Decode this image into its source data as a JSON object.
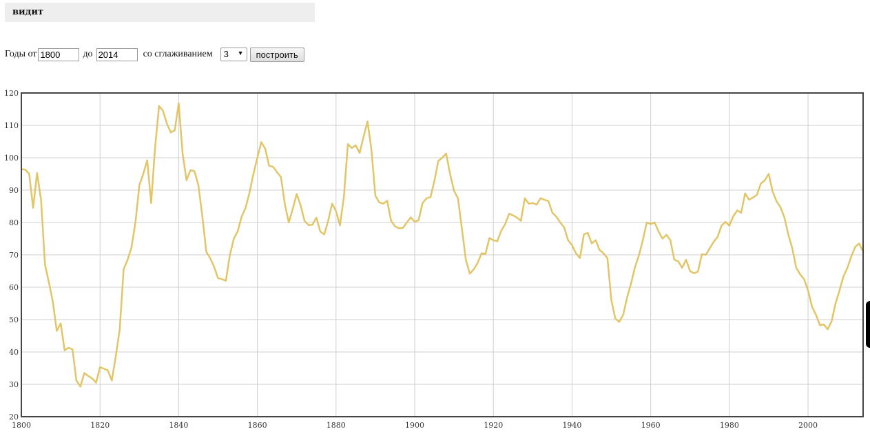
{
  "header": {
    "title": "видит"
  },
  "controls": {
    "years_from_label": "Годы от",
    "year_from": "1800",
    "to_label": "до",
    "year_to": "2014",
    "smoothing_label": "со сглаживанием",
    "smoothing_value": "3",
    "dropdown_arrow": "▼",
    "build_button": "построить"
  },
  "chart_data": {
    "type": "line",
    "title": "",
    "xlabel": "",
    "ylabel": "",
    "xlim": [
      1800,
      2014
    ],
    "ylim": [
      20,
      120
    ],
    "xticks": [
      1800,
      1820,
      1840,
      1860,
      1880,
      1900,
      1920,
      1940,
      1960,
      1980,
      2000
    ],
    "yticks": [
      20,
      30,
      40,
      50,
      60,
      70,
      80,
      90,
      100,
      110,
      120
    ],
    "grid": true,
    "line_color": "#e2c566",
    "series": [
      {
        "x": [
          1800,
          1801,
          1802,
          1803,
          1804,
          1805,
          1806,
          1807,
          1808,
          1809,
          1810,
          1811,
          1812,
          1813,
          1814,
          1815,
          1816,
          1817,
          1818,
          1819,
          1820,
          1821,
          1822,
          1823,
          1824,
          1825,
          1826,
          1827,
          1828,
          1829,
          1830,
          1831,
          1832,
          1833,
          1834,
          1835,
          1836,
          1837,
          1838,
          1839,
          1840,
          1841,
          1842,
          1843,
          1844,
          1845,
          1846,
          1847,
          1848,
          1849,
          1850,
          1851,
          1852,
          1853,
          1854,
          1855,
          1856,
          1857,
          1858,
          1859,
          1860,
          1861,
          1862,
          1863,
          1864,
          1865,
          1866,
          1867,
          1868,
          1869,
          1870,
          1871,
          1872,
          1873,
          1874,
          1875,
          1876,
          1877,
          1878,
          1879,
          1880,
          1881,
          1882,
          1883,
          1884,
          1885,
          1886,
          1887,
          1888,
          1889,
          1890,
          1891,
          1892,
          1893,
          1894,
          1895,
          1896,
          1897,
          1898,
          1899,
          1900,
          1901,
          1902,
          1903,
          1904,
          1905,
          1906,
          1907,
          1908,
          1909,
          1910,
          1911,
          1912,
          1913,
          1914,
          1915,
          1916,
          1917,
          1918,
          1919,
          1920,
          1921,
          1922,
          1923,
          1924,
          1925,
          1926,
          1927,
          1928,
          1929,
          1930,
          1931,
          1932,
          1933,
          1934,
          1935,
          1936,
          1937,
          1938,
          1939,
          1940,
          1941,
          1942,
          1943,
          1944,
          1945,
          1946,
          1947,
          1948,
          1949,
          1950,
          1951,
          1952,
          1953,
          1954,
          1955,
          1956,
          1957,
          1958,
          1959,
          1960,
          1961,
          1962,
          1963,
          1964,
          1965,
          1966,
          1967,
          1968,
          1969,
          1970,
          1971,
          1972,
          1973,
          1974,
          1975,
          1976,
          1977,
          1978,
          1979,
          1980,
          1981,
          1982,
          1983,
          1984,
          1985,
          1986,
          1987,
          1988,
          1989,
          1990,
          1991,
          1992,
          1993,
          1994,
          1995,
          1996,
          1997,
          1998,
          1999,
          2000,
          2001,
          2002,
          2003,
          2004,
          2005,
          2006,
          2007,
          2008,
          2009,
          2010,
          2011,
          2012,
          2013,
          2014
        ],
        "y": [
          96.5,
          96.3,
          95,
          84.5,
          95.3,
          87,
          67,
          61.5,
          55.5,
          46.5,
          48.8,
          40.5,
          41.3,
          40.8,
          31.2,
          29.3,
          33.5,
          32.6,
          31.8,
          30.5,
          35.3,
          34.8,
          34.3,
          31.2,
          38.5,
          47,
          65.5,
          68.5,
          72.3,
          80,
          91.5,
          95,
          99.2,
          86,
          103,
          116,
          114.5,
          110.5,
          107.8,
          108.5,
          116.8,
          101.3,
          93,
          96.2,
          95.8,
          91.5,
          82,
          71,
          69,
          66.3,
          62.8,
          62.5,
          62,
          69.8,
          75,
          77.3,
          81.8,
          84.5,
          89.2,
          95,
          100,
          104.8,
          102.8,
          97.5,
          97.2,
          95.5,
          94,
          85.5,
          80,
          84.2,
          88.8,
          85.3,
          80.5,
          79.2,
          79.3,
          81.5,
          77.2,
          76.3,
          80.5,
          85.8,
          83.5,
          79.1,
          87.8,
          104.2,
          103,
          103.8,
          101.5,
          106.5,
          111.2,
          102.5,
          88.3,
          86.2,
          85.8,
          86.7,
          80.5,
          78.8,
          78.2,
          78.3,
          80,
          81.6,
          80.2,
          80.7,
          86,
          87.5,
          87.8,
          92.8,
          99,
          100,
          101.3,
          95,
          89.8,
          87.5,
          78,
          68.5,
          64.2,
          65.5,
          67.5,
          70.5,
          70.3,
          75.2,
          74.5,
          74.2,
          77.5,
          79.5,
          82.7,
          82.2,
          81.5,
          80.5,
          87.5,
          85.8,
          86,
          85.5,
          87.5,
          87,
          86.6,
          83,
          81.8,
          80,
          78.5,
          74.5,
          73,
          70.5,
          69,
          76.3,
          76.8,
          73.5,
          74.5,
          71.5,
          70.5,
          69,
          56,
          50.3,
          49.3,
          51.5,
          56.8,
          61.2,
          66.2,
          69.8,
          74.5,
          80,
          79.5,
          80,
          77.2,
          75,
          76.2,
          74.5,
          68.5,
          68,
          66,
          68.5,
          65,
          64.3,
          64.8,
          70.2,
          70,
          72,
          74,
          75.5,
          79,
          80.2,
          79,
          82,
          83.7,
          83,
          89,
          87,
          87.7,
          88.5,
          92,
          93,
          95,
          89.5,
          86.5,
          84.7,
          81.5,
          76.2,
          72,
          66,
          64,
          62.5,
          59,
          54,
          51.5,
          48.3,
          48.5,
          47,
          49.5,
          55,
          59,
          63.3,
          66,
          69.5,
          72.5,
          73.5,
          71
        ]
      }
    ]
  }
}
